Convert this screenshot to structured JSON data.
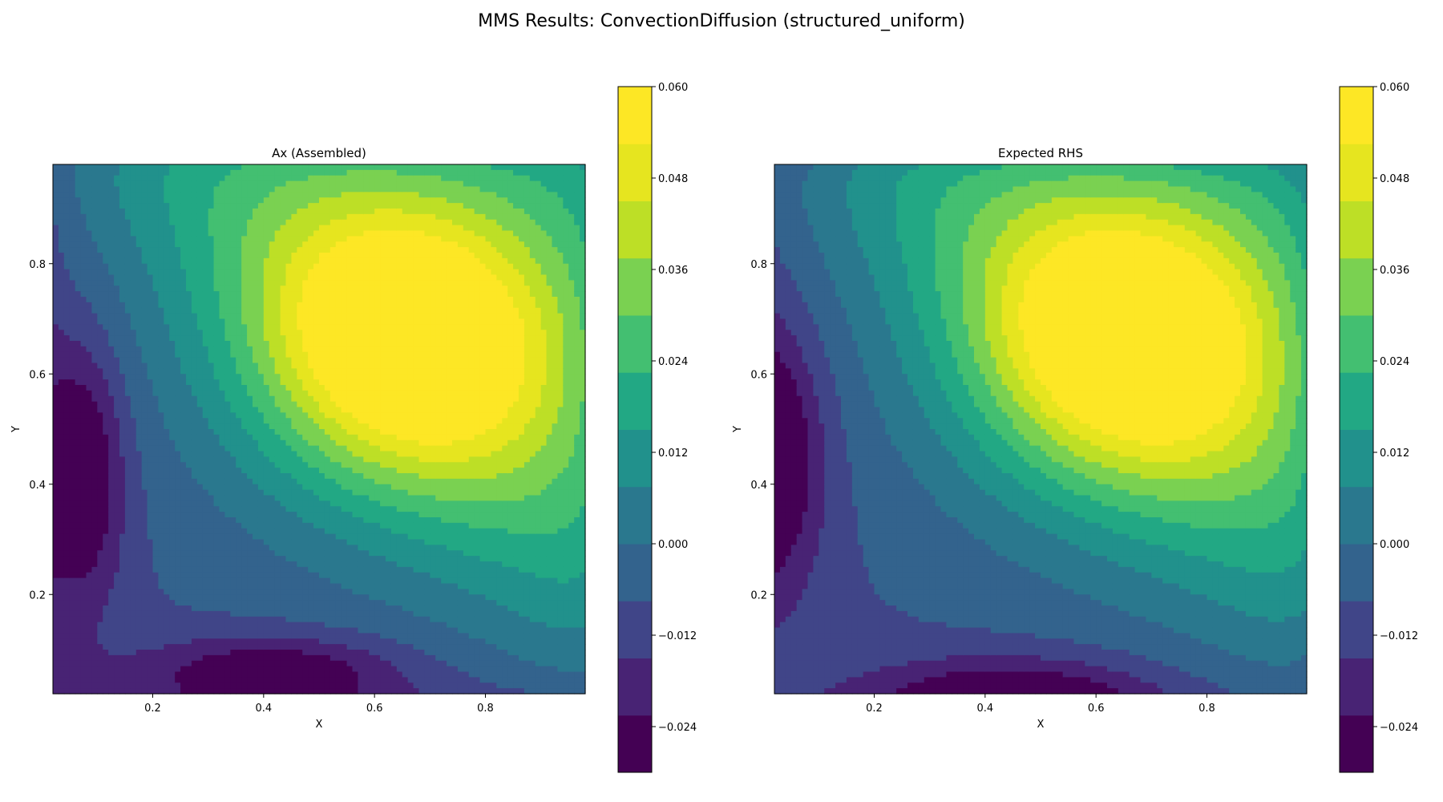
{
  "figure": {
    "suptitle": "MMS Results: ConvectionDiffusion (structured_uniform)"
  },
  "colors": {
    "levels": [
      "#440154",
      "#482475",
      "#414487",
      "#355f8d",
      "#2a788e",
      "#21918c",
      "#22a884",
      "#44bf70",
      "#7ad151",
      "#bddf26",
      "#fde725"
    ],
    "band_colors": [
      "#440154",
      "#482374",
      "#404588",
      "#33638d",
      "#2a788e",
      "#21918c",
      "#22a884",
      "#43bf71",
      "#7ad151",
      "#bddf26",
      "#e6e51f",
      "#fde725"
    ],
    "axis": "#000000"
  },
  "chart_data": [
    {
      "type": "heatmap",
      "title": "Ax (Assembled)",
      "xlabel": "X",
      "ylabel": "Y",
      "xlim": [
        0.02,
        0.98
      ],
      "ylim": [
        0.02,
        0.98
      ],
      "xticks": [
        "0.2",
        "0.4",
        "0.6",
        "0.8"
      ],
      "xtick_values": [
        0.2,
        0.4,
        0.6,
        0.8
      ],
      "yticks": [
        "0.2",
        "0.4",
        "0.6",
        "0.8"
      ],
      "ytick_values": [
        0.2,
        0.4,
        0.6,
        0.8
      ],
      "colorbar": {
        "range": [
          -0.03,
          0.06
        ],
        "levels": [
          -0.03,
          -0.0225,
          -0.015,
          -0.0075,
          0.0,
          0.0075,
          0.015,
          0.0225,
          0.03,
          0.0375,
          0.045,
          0.0525,
          0.06
        ],
        "tick_labels": [
          "−0.024",
          "−0.012",
          "0.000",
          "0.012",
          "0.024",
          "0.036",
          "0.048",
          "0.060"
        ],
        "tick_values": [
          -0.024,
          -0.012,
          0.0,
          0.012,
          0.024,
          0.036,
          0.048,
          0.06
        ]
      },
      "field": {
        "peak": [
          0.66,
          0.66
        ],
        "peak_value": 0.058,
        "min_region": [
          0.07,
          0.42
        ],
        "min_value": -0.027,
        "bottom_trough": [
          0.42,
          0.05
        ]
      }
    },
    {
      "type": "heatmap",
      "title": "Expected RHS",
      "xlabel": "X",
      "ylabel": "Y",
      "xlim": [
        0.02,
        0.98
      ],
      "ylim": [
        0.02,
        0.98
      ],
      "xticks": [
        "0.2",
        "0.4",
        "0.6",
        "0.8"
      ],
      "xtick_values": [
        0.2,
        0.4,
        0.6,
        0.8
      ],
      "yticks": [
        "0.2",
        "0.4",
        "0.6",
        "0.8"
      ],
      "ytick_values": [
        0.2,
        0.4,
        0.6,
        0.8
      ],
      "colorbar": {
        "range": [
          -0.03,
          0.06
        ],
        "levels": [
          -0.03,
          -0.0225,
          -0.015,
          -0.0075,
          0.0,
          0.0075,
          0.015,
          0.0225,
          0.03,
          0.0375,
          0.045,
          0.0525,
          0.06
        ],
        "tick_labels": [
          "−0.024",
          "−0.012",
          "0.000",
          "0.012",
          "0.024",
          "0.036",
          "0.048",
          "0.060"
        ],
        "tick_values": [
          -0.024,
          -0.012,
          0.0,
          0.012,
          0.024,
          0.036,
          0.048,
          0.06
        ]
      },
      "field": {
        "peak": [
          0.66,
          0.66
        ],
        "peak_value": 0.058,
        "min_region": [
          0.03,
          0.45
        ],
        "min_value": -0.03,
        "bottom_trough": [
          0.45,
          0.03
        ]
      }
    }
  ]
}
